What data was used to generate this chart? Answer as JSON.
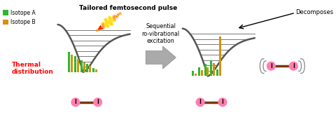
{
  "bg_color": "#ffffff",
  "isotope_a_color": "#2db82d",
  "isotope_b_color": "#d4920a",
  "label_thermal": "Thermal\ndistribution",
  "label_thermal_color": "#ff0000",
  "label_pulse": "Tailored femtosecond pulse",
  "label_sequential": "Sequential\nro-vibrational\nexcitation",
  "label_decomposes": "Decomposes",
  "arrow_gray": "#a0a0a0",
  "iodine_pink": "#ff80b0",
  "bond_color": "#7a3800",
  "wave_orange": "#ff8c00",
  "wave_red": "#ff2000",
  "wave_yellow": "#ffdd00",
  "well_color": "#555555",
  "level_color": "#777777"
}
